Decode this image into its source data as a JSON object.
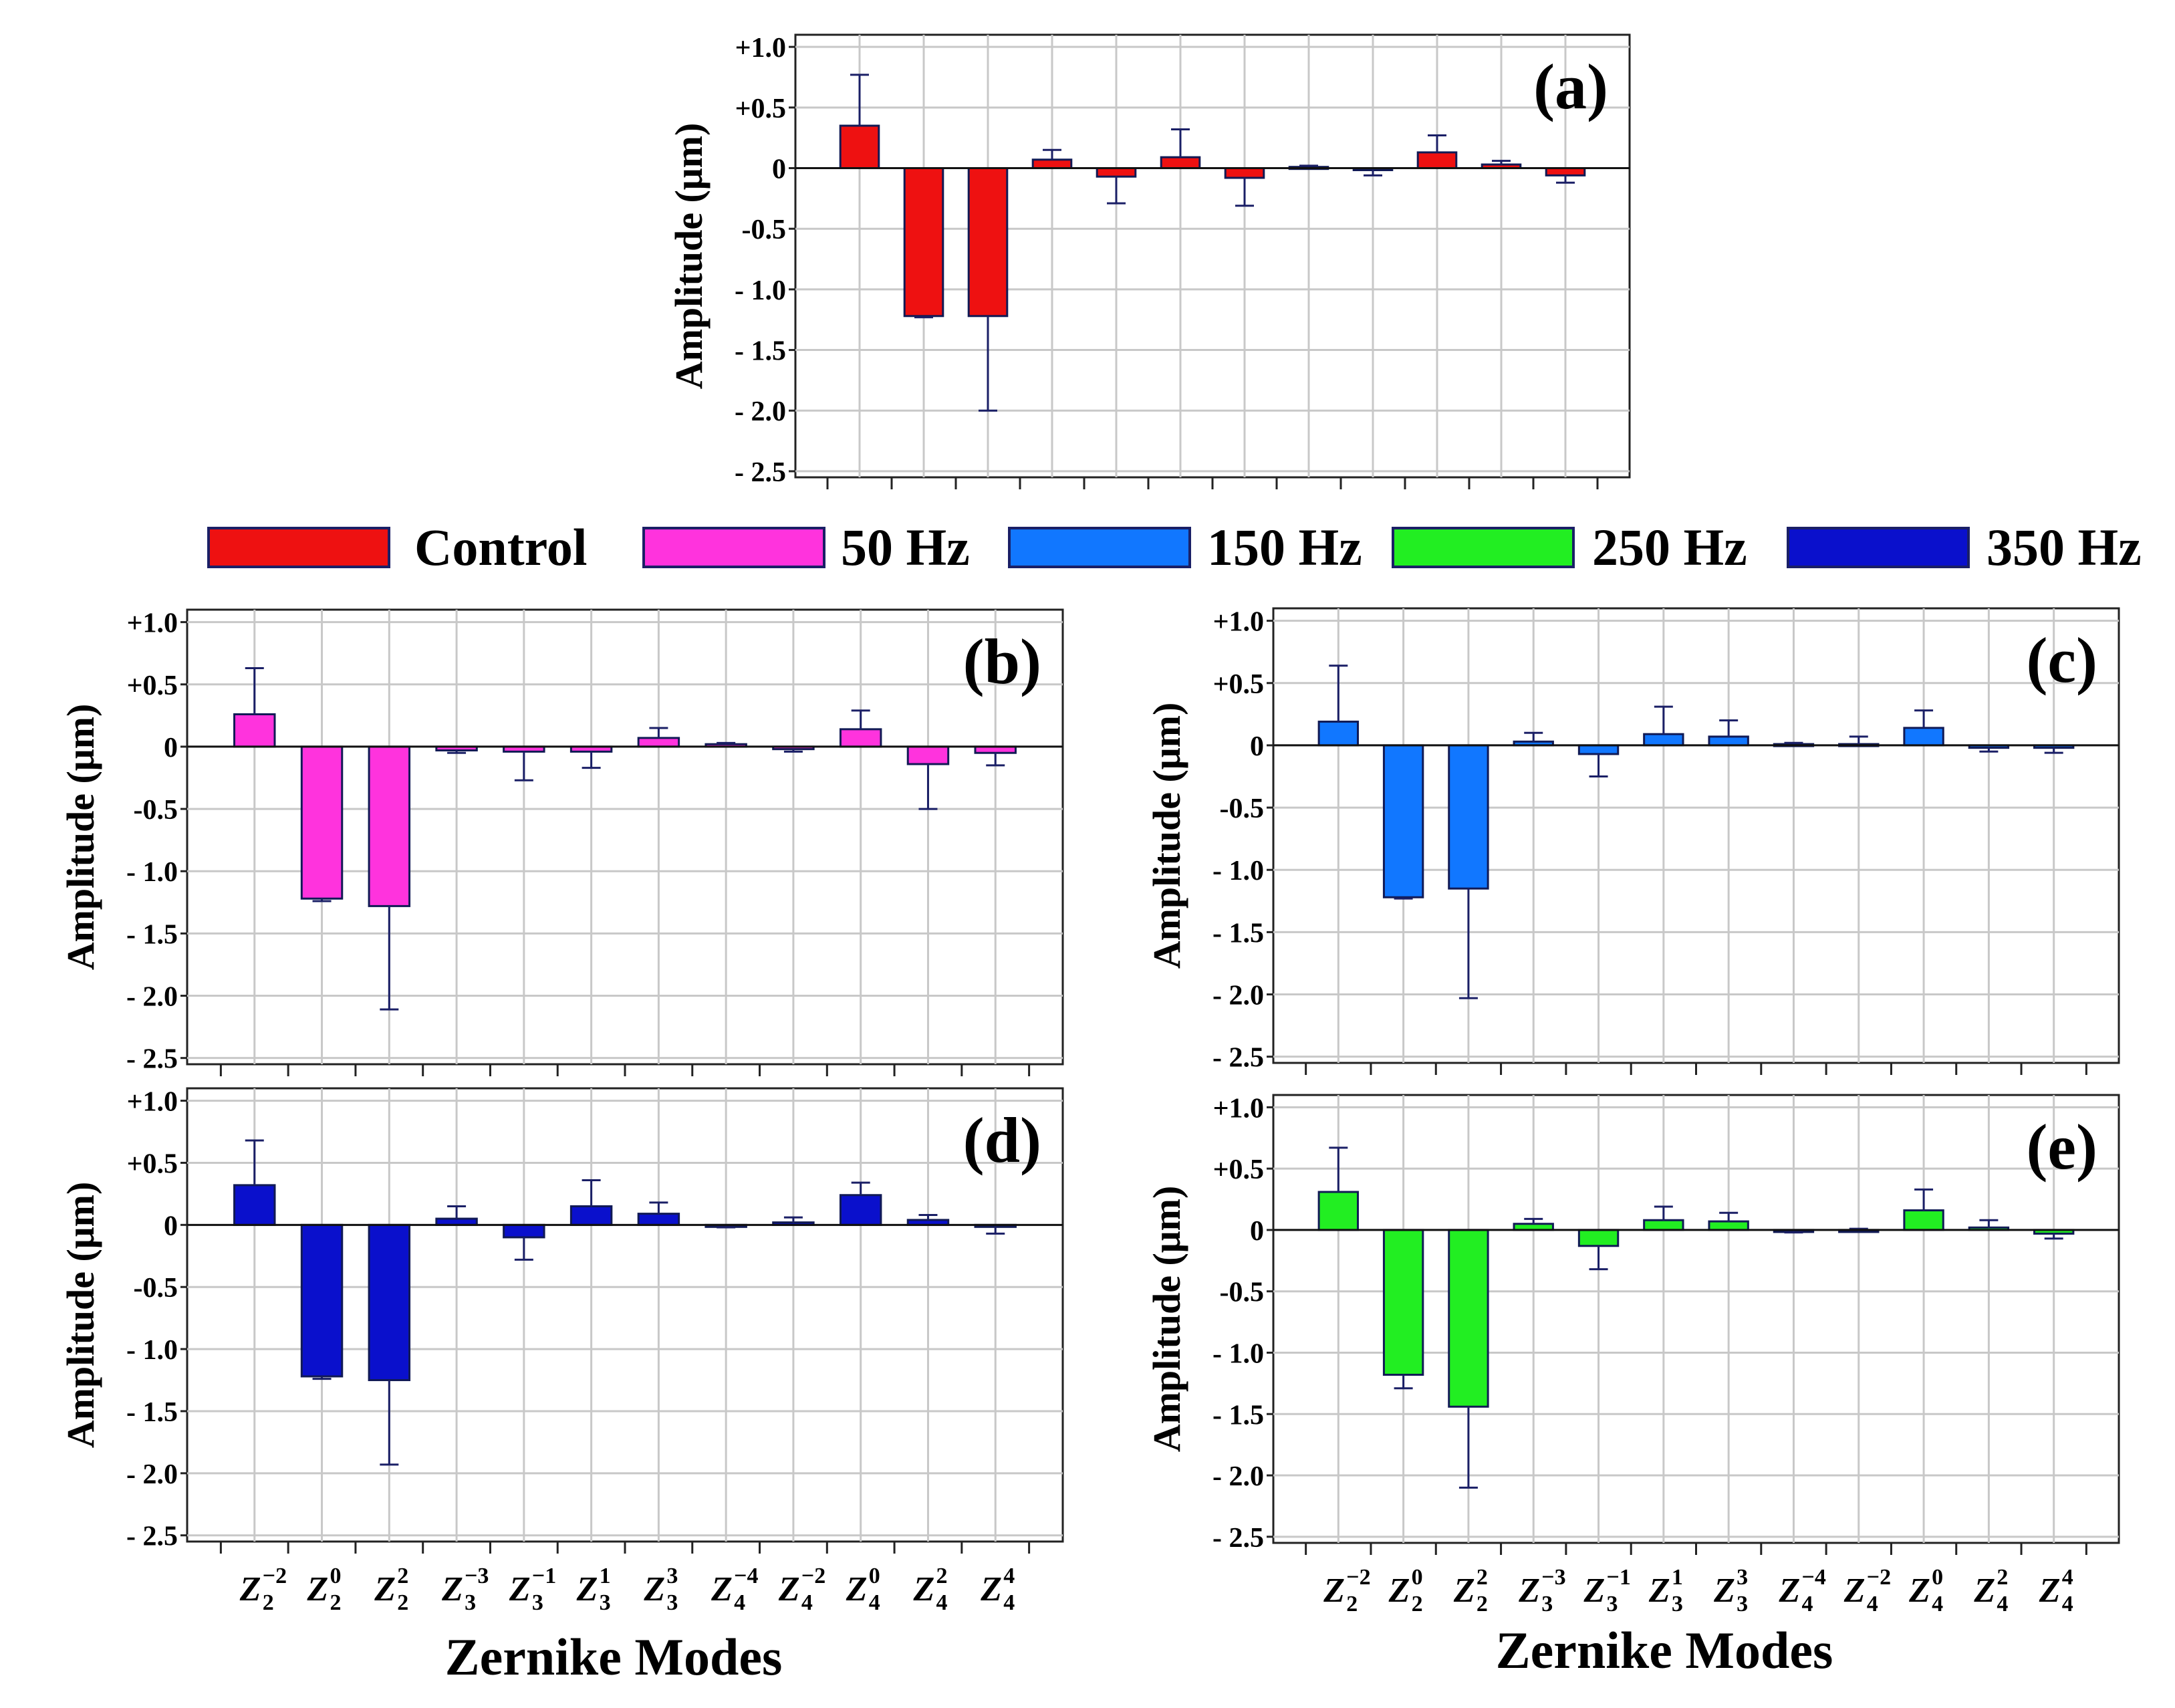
{
  "legend": [
    {
      "label": "Control",
      "color": "#ee1111"
    },
    {
      "label": "50 Hz",
      "color": "#ff33dd"
    },
    {
      "label": "150 Hz",
      "color": "#1177ff"
    },
    {
      "label": "250 Hz",
      "color": "#22ee22"
    },
    {
      "label": "350 Hz",
      "color": "#0a10cc"
    }
  ],
  "x_title": "Zernike Modes",
  "y_ticks": [
    "+1.0",
    "+0.5",
    "0",
    "-0.5",
    "- 1.0",
    "- 1.5",
    "- 2.0",
    "- 2.5"
  ],
  "x_labels": [
    {
      "sym": "Z",
      "sub": "2",
      "sup": "−2"
    },
    {
      "sym": "Z",
      "sub": "2",
      "sup": "0"
    },
    {
      "sym": "Z",
      "sub": "2",
      "sup": "2"
    },
    {
      "sym": "Z",
      "sub": "3",
      "sup": "−3"
    },
    {
      "sym": "Z",
      "sub": "3",
      "sup": "−1"
    },
    {
      "sym": "Z",
      "sub": "3",
      "sup": "1"
    },
    {
      "sym": "Z",
      "sub": "3",
      "sup": "3"
    },
    {
      "sym": "Z",
      "sub": "4",
      "sup": "−4"
    },
    {
      "sym": "Z",
      "sub": "4",
      "sup": "−2"
    },
    {
      "sym": "Z",
      "sub": "4",
      "sup": "0"
    },
    {
      "sym": "Z",
      "sub": "4",
      "sup": "2"
    },
    {
      "sym": "Z",
      "sub": "4",
      "sup": "4"
    }
  ],
  "chart_data": [
    {
      "type": "bar",
      "panel_label": "(a)",
      "series_name": "Control",
      "color": "#ee1111",
      "ylabel": "Amplitude (μm)",
      "ylim": [
        -2.5,
        1.0
      ],
      "categories": [
        "Z2^-2",
        "Z2^0",
        "Z2^2",
        "Z3^-3",
        "Z3^-1",
        "Z3^1",
        "Z3^3",
        "Z4^-4",
        "Z4^-2",
        "Z4^0",
        "Z4^2",
        "Z4^4"
      ],
      "values": [
        0.35,
        -1.22,
        -1.22,
        0.07,
        -0.07,
        0.09,
        -0.08,
        0.01,
        -0.01,
        0.13,
        0.03,
        -0.06
      ],
      "errors": [
        0.42,
        0.01,
        0.78,
        0.08,
        0.22,
        0.23,
        0.23,
        0.01,
        0.05,
        0.14,
        0.03,
        0.06
      ]
    },
    {
      "type": "bar",
      "panel_label": "(b)",
      "series_name": "50 Hz",
      "color": "#ff33dd",
      "ylabel": "Amplitude (μm)",
      "ylim": [
        -2.5,
        1.0
      ],
      "categories": [
        "Z2^-2",
        "Z2^0",
        "Z2^2",
        "Z3^-3",
        "Z3^-1",
        "Z3^1",
        "Z3^3",
        "Z4^-4",
        "Z4^-2",
        "Z4^0",
        "Z4^2",
        "Z4^4"
      ],
      "values": [
        0.26,
        -1.22,
        -1.28,
        -0.03,
        -0.04,
        -0.04,
        0.07,
        0.02,
        -0.02,
        0.14,
        -0.14,
        -0.05
      ],
      "errors": [
        0.37,
        0.02,
        0.83,
        0.02,
        0.23,
        0.13,
        0.08,
        0.01,
        0.02,
        0.15,
        0.36,
        0.1
      ]
    },
    {
      "type": "bar",
      "panel_label": "(c)",
      "series_name": "150 Hz",
      "color": "#1177ff",
      "ylabel": "Amplitude (μm)",
      "ylim": [
        -2.5,
        1.0
      ],
      "categories": [
        "Z2^-2",
        "Z2^0",
        "Z2^2",
        "Z3^-3",
        "Z3^-1",
        "Z3^1",
        "Z3^3",
        "Z4^-4",
        "Z4^-2",
        "Z4^0",
        "Z4^2",
        "Z4^4"
      ],
      "values": [
        0.19,
        -1.22,
        -1.15,
        0.03,
        -0.07,
        0.09,
        0.07,
        0.01,
        0.01,
        0.14,
        -0.02,
        -0.02
      ],
      "errors": [
        0.45,
        0.01,
        0.88,
        0.07,
        0.18,
        0.22,
        0.13,
        0.01,
        0.06,
        0.14,
        0.03,
        0.04
      ]
    },
    {
      "type": "bar",
      "panel_label": "(d)",
      "series_name": "350 Hz",
      "color": "#0a10cc",
      "ylabel": "Amplitude (μm)",
      "ylim": [
        -2.5,
        1.0
      ],
      "categories": [
        "Z2^-2",
        "Z2^0",
        "Z2^2",
        "Z3^-3",
        "Z3^-1",
        "Z3^1",
        "Z3^3",
        "Z4^-4",
        "Z4^-2",
        "Z4^0",
        "Z4^2",
        "Z4^4"
      ],
      "values": [
        0.32,
        -1.22,
        -1.25,
        0.05,
        -0.1,
        0.15,
        0.09,
        -0.01,
        0.02,
        0.24,
        0.04,
        -0.01
      ],
      "errors": [
        0.36,
        0.02,
        0.68,
        0.1,
        0.18,
        0.21,
        0.09,
        0.01,
        0.04,
        0.1,
        0.04,
        0.06
      ]
    },
    {
      "type": "bar",
      "panel_label": "(e)",
      "series_name": "250 Hz",
      "color": "#22ee22",
      "ylabel": "Amplitude (μm)",
      "ylim": [
        -2.5,
        1.0
      ],
      "categories": [
        "Z2^-2",
        "Z2^0",
        "Z2^2",
        "Z3^-3",
        "Z3^-1",
        "Z3^1",
        "Z3^3",
        "Z4^-4",
        "Z4^-2",
        "Z4^0",
        "Z4^2",
        "Z4^4"
      ],
      "values": [
        0.31,
        -1.18,
        -1.44,
        0.05,
        -0.13,
        0.08,
        0.07,
        -0.01,
        0.0,
        0.16,
        0.02,
        -0.03
      ],
      "errors": [
        0.36,
        0.11,
        0.66,
        0.04,
        0.19,
        0.11,
        0.07,
        0.01,
        0.01,
        0.17,
        0.06,
        0.04
      ]
    }
  ]
}
